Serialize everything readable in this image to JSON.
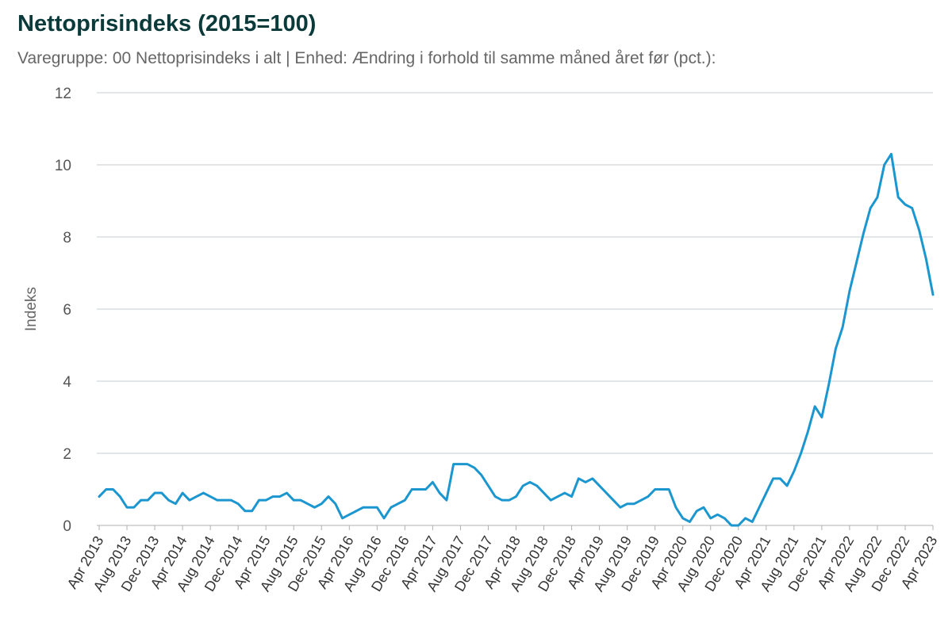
{
  "chart_data": {
    "type": "line",
    "title": "Nettoprisindeks (2015=100)",
    "subtitle": "Varegruppe: 00 Nettoprisindeks i alt | Enhed: Ændring i forhold til samme måned året før (pct.):",
    "ylabel": "Indeks",
    "xlabel": "",
    "ylim": [
      0,
      12
    ],
    "yticks": [
      0,
      2,
      4,
      6,
      8,
      10,
      12
    ],
    "grid": true,
    "x_tick_labels": [
      "Apr 2013",
      "Aug 2013",
      "Dec 2013",
      "Apr 2014",
      "Aug 2014",
      "Dec 2014",
      "Apr 2015",
      "Aug 2015",
      "Dec 2015",
      "Apr 2016",
      "Aug 2016",
      "Dec 2016",
      "Apr 2017",
      "Aug 2017",
      "Dec 2017",
      "Apr 2018",
      "Aug 2018",
      "Dec 2018",
      "Apr 2019",
      "Aug 2019",
      "Dec 2019",
      "Apr 2020",
      "Aug 2020",
      "Dec 2020",
      "Apr 2021",
      "Aug 2021",
      "Dec 2021",
      "Apr 2022",
      "Aug 2022",
      "Dec 2022",
      "Apr 2023"
    ],
    "x_start": "2013-04",
    "x_end": "2023-04",
    "series": [
      {
        "name": "",
        "color": "#1b96cf",
        "values": [
          0.8,
          1.0,
          1.0,
          0.8,
          0.5,
          0.5,
          0.7,
          0.7,
          0.9,
          0.9,
          0.7,
          0.6,
          0.9,
          0.7,
          0.8,
          0.9,
          0.8,
          0.7,
          0.7,
          0.7,
          0.6,
          0.4,
          0.4,
          0.7,
          0.7,
          0.8,
          0.8,
          0.9,
          0.7,
          0.7,
          0.6,
          0.5,
          0.6,
          0.8,
          0.6,
          0.2,
          0.3,
          0.4,
          0.5,
          0.5,
          0.5,
          0.2,
          0.5,
          0.6,
          0.7,
          1.0,
          1.0,
          1.0,
          1.2,
          0.9,
          0.7,
          1.7,
          1.7,
          1.7,
          1.6,
          1.4,
          1.1,
          0.8,
          0.7,
          0.7,
          0.8,
          1.1,
          1.2,
          1.1,
          0.9,
          0.7,
          0.8,
          0.9,
          0.8,
          1.3,
          1.2,
          1.3,
          1.1,
          0.9,
          0.7,
          0.5,
          0.6,
          0.6,
          0.7,
          0.8,
          1.0,
          1.0,
          1.0,
          0.5,
          0.2,
          0.1,
          0.4,
          0.5,
          0.2,
          0.3,
          0.2,
          0.0,
          0.0,
          0.2,
          0.1,
          0.5,
          0.9,
          1.3,
          1.3,
          1.1,
          1.5,
          2.0,
          2.6,
          3.3,
          3.0,
          3.9,
          4.9,
          5.5,
          6.5,
          7.3,
          8.1,
          8.8,
          9.1,
          10.0,
          10.3,
          9.1,
          8.9,
          8.8,
          8.2,
          7.4,
          6.4
        ]
      }
    ]
  }
}
